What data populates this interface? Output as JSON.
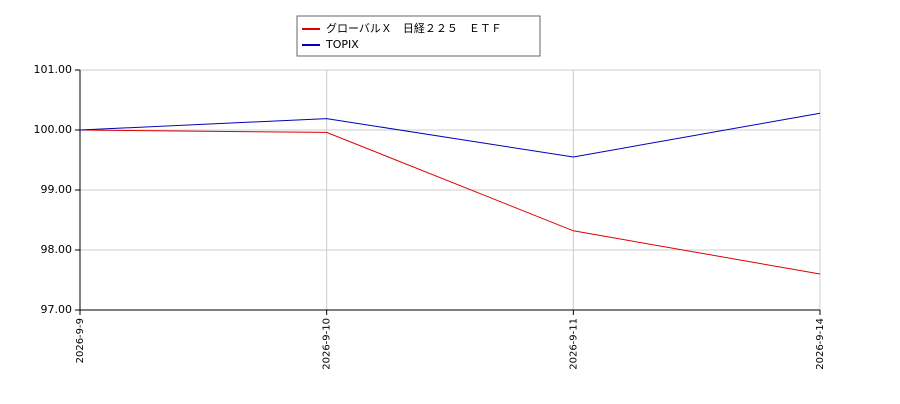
{
  "chart_data": {
    "type": "line",
    "categories": [
      "2026-9-9",
      "2026-9-10",
      "2026-9-11",
      "2026-9-14"
    ],
    "series": [
      {
        "name": "グローバルＸ　日経２２５　ＥＴＦ",
        "color": "#dd0000",
        "values": [
          100.0,
          99.96,
          98.32,
          97.6
        ]
      },
      {
        "name": "TOPIX",
        "color": "#0000bb",
        "values": [
          100.0,
          100.19,
          99.55,
          100.28
        ]
      }
    ],
    "ylim": [
      97,
      101
    ],
    "yticks": [
      {
        "value": 97,
        "label": "97.00"
      },
      {
        "value": 98,
        "label": "98.00"
      },
      {
        "value": 99,
        "label": "99.00"
      },
      {
        "value": 100,
        "label": "100.00"
      },
      {
        "value": 101,
        "label": "101.00"
      }
    ],
    "grid": true,
    "legend": "top"
  }
}
